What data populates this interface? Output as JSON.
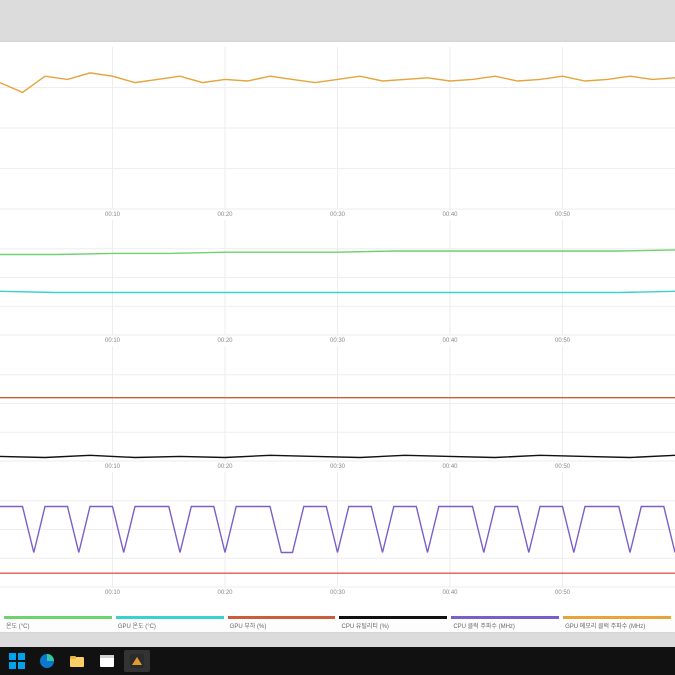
{
  "background_color": "#dcdcdc",
  "panel_background": "#ffffff",
  "grid_color": "#eeeeee",
  "axis_label_color": "#888888",
  "axis_font_size": 6,
  "time_ticks": [
    "00:10",
    "00:20",
    "00:30",
    "00:40",
    "00:50"
  ],
  "charts": [
    {
      "id": "chart-1",
      "type": "line",
      "x_domain": [
        0,
        60
      ],
      "tick_x": [
        10,
        20,
        30,
        40,
        50
      ],
      "series": [
        {
          "name": "gpu-memory-clock",
          "color": "#e6a43a",
          "y_domain": [
            0,
            100
          ],
          "points": [
            [
              0,
              78
            ],
            [
              2,
              72
            ],
            [
              4,
              82
            ],
            [
              6,
              80
            ],
            [
              8,
              84
            ],
            [
              10,
              82
            ],
            [
              12,
              78
            ],
            [
              14,
              80
            ],
            [
              16,
              82
            ],
            [
              18,
              78
            ],
            [
              20,
              80
            ],
            [
              22,
              79
            ],
            [
              24,
              82
            ],
            [
              26,
              80
            ],
            [
              28,
              78
            ],
            [
              30,
              80
            ],
            [
              32,
              82
            ],
            [
              34,
              79
            ],
            [
              36,
              80
            ],
            [
              38,
              81
            ],
            [
              40,
              79
            ],
            [
              42,
              80
            ],
            [
              44,
              82
            ],
            [
              46,
              79
            ],
            [
              48,
              80
            ],
            [
              50,
              82
            ],
            [
              52,
              79
            ],
            [
              54,
              80
            ],
            [
              56,
              82
            ],
            [
              58,
              80
            ],
            [
              60,
              81
            ]
          ]
        }
      ]
    },
    {
      "id": "chart-2",
      "type": "line",
      "x_domain": [
        0,
        60
      ],
      "tick_x": [
        10,
        20,
        30,
        40,
        50
      ],
      "series": [
        {
          "name": "cpu-temp",
          "color": "#6fd16f",
          "y_domain": [
            0,
            100
          ],
          "points": [
            [
              0,
              70
            ],
            [
              5,
              70
            ],
            [
              10,
              71
            ],
            [
              15,
              71
            ],
            [
              20,
              72
            ],
            [
              25,
              72
            ],
            [
              30,
              72
            ],
            [
              35,
              73
            ],
            [
              40,
              73
            ],
            [
              45,
              73
            ],
            [
              50,
              73
            ],
            [
              55,
              73
            ],
            [
              60,
              74
            ]
          ]
        },
        {
          "name": "gpu-temp",
          "color": "#3ad1d1",
          "y_domain": [
            0,
            100
          ],
          "points": [
            [
              0,
              38
            ],
            [
              5,
              37
            ],
            [
              10,
              37
            ],
            [
              15,
              37
            ],
            [
              20,
              37
            ],
            [
              25,
              37
            ],
            [
              30,
              37
            ],
            [
              35,
              37
            ],
            [
              40,
              37
            ],
            [
              45,
              37
            ],
            [
              50,
              37
            ],
            [
              55,
              37
            ],
            [
              60,
              38
            ]
          ]
        }
      ]
    },
    {
      "id": "chart-3",
      "type": "line",
      "x_domain": [
        0,
        60
      ],
      "tick_x": [
        10,
        20,
        30,
        40,
        50
      ],
      "series": [
        {
          "name": "gpu-load",
          "color": "#c95f3a",
          "y_domain": [
            0,
            100
          ],
          "points": [
            [
              0,
              55
            ],
            [
              60,
              55
            ]
          ]
        },
        {
          "name": "cpu-util",
          "color": "#111111",
          "y_domain": [
            0,
            100
          ],
          "points": [
            [
              0,
              4
            ],
            [
              4,
              3
            ],
            [
              8,
              5
            ],
            [
              12,
              3
            ],
            [
              16,
              4
            ],
            [
              20,
              3
            ],
            [
              24,
              5
            ],
            [
              28,
              4
            ],
            [
              32,
              3
            ],
            [
              36,
              5
            ],
            [
              40,
              4
            ],
            [
              44,
              3
            ],
            [
              48,
              5
            ],
            [
              52,
              4
            ],
            [
              56,
              3
            ],
            [
              60,
              5
            ]
          ]
        }
      ]
    },
    {
      "id": "chart-4",
      "type": "line",
      "x_domain": [
        0,
        60
      ],
      "tick_x": [
        10,
        20,
        30,
        40,
        50
      ],
      "series": [
        {
          "name": "cpu-clock",
          "color": "#7a5fc9",
          "y_domain": [
            0,
            100
          ],
          "points": [
            [
              0,
              70
            ],
            [
              2,
              70
            ],
            [
              3,
              30
            ],
            [
              4,
              70
            ],
            [
              6,
              70
            ],
            [
              7,
              30
            ],
            [
              8,
              70
            ],
            [
              10,
              70
            ],
            [
              11,
              30
            ],
            [
              12,
              70
            ],
            [
              15,
              70
            ],
            [
              16,
              30
            ],
            [
              17,
              70
            ],
            [
              19,
              70
            ],
            [
              20,
              30
            ],
            [
              21,
              70
            ],
            [
              24,
              70
            ],
            [
              25,
              30
            ],
            [
              26,
              30
            ],
            [
              27,
              70
            ],
            [
              29,
              70
            ],
            [
              30,
              30
            ],
            [
              31,
              70
            ],
            [
              33,
              70
            ],
            [
              34,
              30
            ],
            [
              35,
              70
            ],
            [
              37,
              70
            ],
            [
              38,
              30
            ],
            [
              39,
              70
            ],
            [
              42,
              70
            ],
            [
              43,
              30
            ],
            [
              44,
              70
            ],
            [
              46,
              70
            ],
            [
              47,
              30
            ],
            [
              48,
              70
            ],
            [
              50,
              70
            ],
            [
              51,
              30
            ],
            [
              52,
              70
            ],
            [
              55,
              70
            ],
            [
              56,
              30
            ],
            [
              57,
              70
            ],
            [
              59,
              70
            ],
            [
              60,
              30
            ]
          ]
        },
        {
          "name": "fan-or-other",
          "color": "#e05a5a",
          "y_domain": [
            0,
            100
          ],
          "points": [
            [
              0,
              12
            ],
            [
              60,
              12
            ]
          ]
        }
      ]
    }
  ],
  "legend": [
    {
      "label": "온도 (°C)",
      "color": "#6fd16f"
    },
    {
      "label": "GPU 온도 (°C)",
      "color": "#3ad1d1"
    },
    {
      "label": "GPU 부하 (%)",
      "color": "#c95f3a"
    },
    {
      "label": "CPU 유틸리티 (%)",
      "color": "#111111"
    },
    {
      "label": "CPU 클럭 주파수 (MHz)",
      "color": "#7a5fc9"
    },
    {
      "label": "GPU 메모리 클럭 주파수 (MHz)",
      "color": "#e6a43a"
    }
  ],
  "taskbar": {
    "background": "#111111",
    "icons": [
      {
        "name": "start",
        "color1": "#00a2ed",
        "color2": "#00a2ed"
      },
      {
        "name": "edge",
        "color1": "#0b78d0",
        "color2": "#36c6a1"
      },
      {
        "name": "explorer",
        "color1": "#ffcc66",
        "color2": "#ffe9b3"
      },
      {
        "name": "calendar",
        "color1": "#ffffff",
        "color2": "#d0d0d0"
      },
      {
        "name": "monitoring-app",
        "color1": "#e39b2f",
        "color2": "#2b2b2b",
        "active": true
      }
    ]
  }
}
